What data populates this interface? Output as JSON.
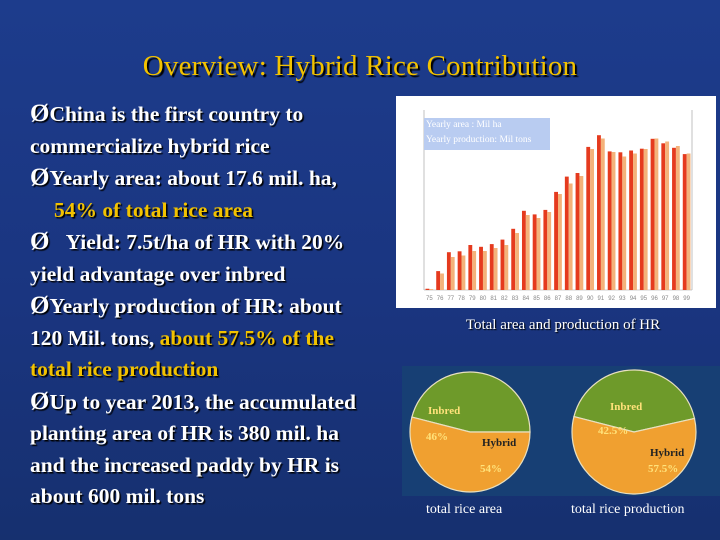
{
  "title": "Overview: Hybrid Rice Contribution",
  "bullets": {
    "b1_l1": "China is the first country to",
    "b1_l2": "commercialize hybrid rice",
    "b2_l1": "Yearly area: about 17.6 mil. ha,",
    "b2_l2": "54% of total rice area",
    "b3_l1": "Yield: 7.5t/ha of HR with 20%",
    "b3_l2": "yield advantage over inbred",
    "b4_l1": "Yearly production of HR: about",
    "b4_l2a": "120 Mil. tons, ",
    "b4_l2b": "about 57.5% of the",
    "b4_l3": "total rice production",
    "b5_l1": "Up to year 2013, the accumulated",
    "b5_l2": "planting area of HR is 380 mil. ha",
    "b5_l3": "and the increased paddy by HR is",
    "b5_l4": "about 600 mil. tons"
  },
  "bar_chart": {
    "legend_area": "Yearly area : Mil ha",
    "legend_production": "Yearly production: Mil tons",
    "caption": "Total area and production of HR"
  },
  "colors": {
    "title": "#f2c200",
    "highlight": "#f2c200",
    "area_bar": "#e53a1e",
    "production_bar": "#f4b27a",
    "pie_inbred": "#6e9a2a",
    "pie_hybrid": "#f0a030",
    "pie_panel": "#173f74"
  },
  "chart_data": [
    {
      "type": "bar",
      "categories": [
        "75",
        "76",
        "77",
        "78",
        "79",
        "80",
        "81",
        "82",
        "83",
        "84",
        "85",
        "86",
        "87",
        "88",
        "89",
        "90",
        "91",
        "92",
        "93",
        "94",
        "95",
        "96",
        "97",
        "98",
        "99"
      ],
      "series": [
        {
          "name": "Yearly area : Mil ha",
          "values": [
            0.14,
            2.1,
            4.2,
            4.3,
            5.0,
            4.8,
            5.1,
            5.6,
            6.8,
            8.8,
            8.4,
            8.9,
            10.9,
            12.6,
            13.0,
            15.9,
            17.2,
            15.4,
            15.3,
            15.5,
            15.7,
            16.8,
            16.3,
            15.8,
            15.1
          ]
        },
        {
          "name": "Yearly production: Mil tons",
          "values": [
            0.6,
            11,
            22,
            23,
            26,
            26,
            28,
            30,
            38,
            50,
            48,
            52,
            64,
            71,
            76,
            94,
            101,
            92,
            89,
            91,
            94,
            101,
            99,
            96,
            91
          ]
        }
      ],
      "xlabel": "",
      "ylabel": ""
    },
    {
      "type": "pie",
      "caption": "total rice area",
      "labels": [
        "Inbred",
        "Hybrid"
      ],
      "values": [
        46,
        54
      ],
      "value_labels": [
        "46%",
        "54%"
      ]
    },
    {
      "type": "pie",
      "caption": "total rice production",
      "labels": [
        "Inbred",
        "Hybrid"
      ],
      "values": [
        42.5,
        57.5
      ],
      "value_labels": [
        "42.5%",
        "57.5%"
      ]
    }
  ]
}
